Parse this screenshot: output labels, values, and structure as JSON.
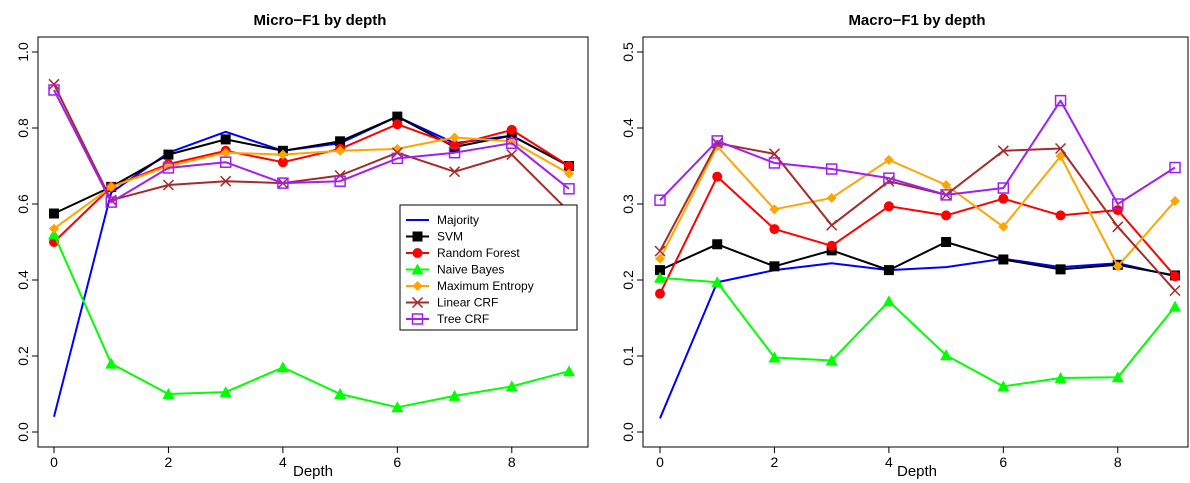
{
  "figure": {
    "colors": {
      "Majority": "#0000ff",
      "SVM": "#000000",
      "Random Forest": "#ff0000",
      "Naive Bayes": "#00ff00",
      "Maximum Entropy": "#ffa500",
      "Linear CRF": "#a52a2a",
      "Tree CRF": "#a020f0"
    },
    "markers": {
      "Majority": "none",
      "SVM": "square",
      "Random Forest": "circle",
      "Naive Bayes": "triangle",
      "Maximum Entropy": "diamond",
      "Linear CRF": "cross",
      "Tree CRF": "open-square"
    }
  },
  "chart_data": [
    {
      "type": "line",
      "title": "Micro−F1 by depth",
      "xlabel": "Depth",
      "ylabel": "",
      "xlim": [
        0,
        9
      ],
      "ylim": [
        0,
        1.0
      ],
      "xticks": [
        0,
        2,
        4,
        6,
        8
      ],
      "yticks": [
        "0.0",
        "0.2",
        "0.4",
        "0.6",
        "0.8",
        "1.0"
      ],
      "grid": false,
      "legend": "right-middle",
      "x": [
        0,
        1,
        2,
        3,
        4,
        5,
        6,
        7,
        8,
        9
      ],
      "series": [
        {
          "name": "Majority",
          "values": [
            0.04,
            0.63,
            0.735,
            0.79,
            0.74,
            0.76,
            0.83,
            0.76,
            0.78,
            0.7
          ]
        },
        {
          "name": "SVM",
          "values": [
            0.575,
            0.645,
            0.73,
            0.77,
            0.74,
            0.765,
            0.83,
            0.75,
            0.78,
            0.7
          ]
        },
        {
          "name": "Random Forest",
          "values": [
            0.5,
            0.645,
            0.705,
            0.74,
            0.71,
            0.745,
            0.81,
            0.755,
            0.795,
            0.7
          ]
        },
        {
          "name": "Naive Bayes",
          "values": [
            0.52,
            0.18,
            0.1,
            0.105,
            0.17,
            0.1,
            0.065,
            0.095,
            0.12,
            0.16
          ]
        },
        {
          "name": "Maximum Entropy",
          "values": [
            0.535,
            0.645,
            0.7,
            0.735,
            0.73,
            0.74,
            0.745,
            0.775,
            0.765,
            0.68
          ]
        },
        {
          "name": "Linear CRF",
          "values": [
            0.915,
            0.61,
            0.65,
            0.66,
            0.655,
            0.675,
            0.735,
            0.685,
            0.73,
            0.58
          ]
        },
        {
          "name": "Tree CRF",
          "values": [
            0.9,
            0.605,
            0.695,
            0.71,
            0.655,
            0.66,
            0.72,
            0.735,
            0.76,
            0.64
          ]
        }
      ]
    },
    {
      "type": "line",
      "title": "Macro−F1 by depth",
      "xlabel": "Depth",
      "ylabel": "",
      "xlim": [
        0,
        9
      ],
      "ylim": [
        0,
        0.5
      ],
      "xticks": [
        0,
        2,
        4,
        6,
        8
      ],
      "yticks": [
        "0.0",
        "0.1",
        "0.2",
        "0.3",
        "0.4",
        "0.5"
      ],
      "grid": false,
      "x": [
        0,
        1,
        2,
        3,
        4,
        5,
        6,
        7,
        8,
        9
      ],
      "series": [
        {
          "name": "Majority",
          "values": [
            0.018,
            0.197,
            0.213,
            0.222,
            0.213,
            0.217,
            0.228,
            0.217,
            0.222,
            0.205
          ]
        },
        {
          "name": "SVM",
          "values": [
            0.213,
            0.247,
            0.218,
            0.239,
            0.213,
            0.25,
            0.227,
            0.214,
            0.22,
            0.206
          ]
        },
        {
          "name": "Random Forest",
          "values": [
            0.182,
            0.336,
            0.267,
            0.245,
            0.297,
            0.285,
            0.307,
            0.285,
            0.292,
            0.205
          ]
        },
        {
          "name": "Naive Bayes",
          "values": [
            0.203,
            0.197,
            0.098,
            0.094,
            0.172,
            0.101,
            0.06,
            0.071,
            0.072,
            0.165
          ]
        },
        {
          "name": "Maximum Entropy",
          "values": [
            0.228,
            0.376,
            0.293,
            0.308,
            0.358,
            0.325,
            0.27,
            0.363,
            0.218,
            0.304
          ]
        },
        {
          "name": "Linear CRF",
          "values": [
            0.238,
            0.38,
            0.366,
            0.272,
            0.33,
            0.312,
            0.37,
            0.373,
            0.27,
            0.186
          ]
        },
        {
          "name": "Tree CRF",
          "values": [
            0.305,
            0.383,
            0.354,
            0.346,
            0.334,
            0.312,
            0.321,
            0.436,
            0.3,
            0.348
          ]
        }
      ]
    }
  ]
}
